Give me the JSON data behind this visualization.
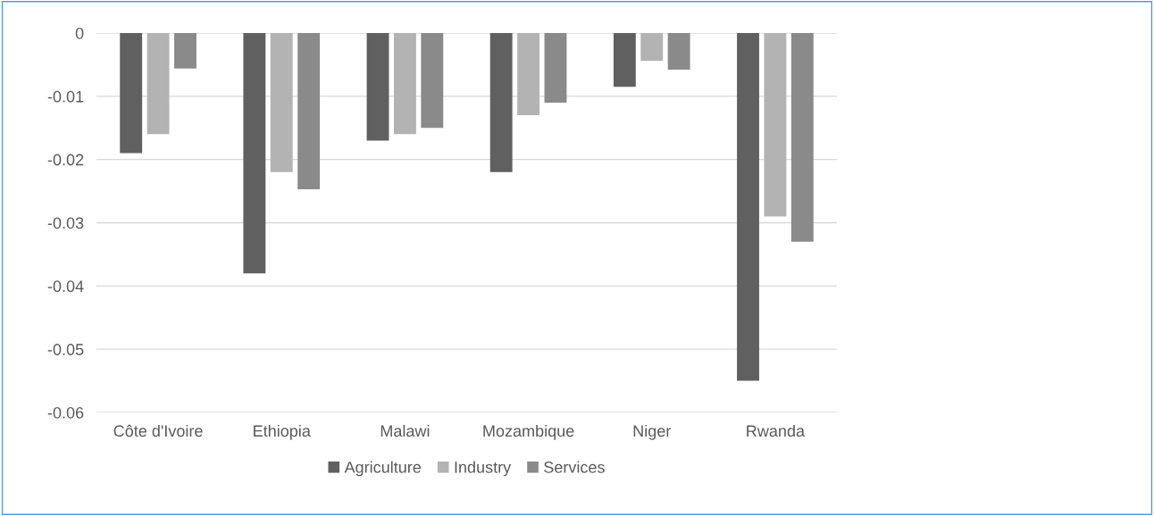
{
  "chart_data": {
    "type": "bar",
    "categories": [
      "Côte d'Ivoire",
      "Ethiopia",
      "Malawi",
      "Mozambique",
      "Niger",
      "Rwanda"
    ],
    "series": [
      {
        "name": "Agriculture",
        "color": "#606060",
        "values": [
          -0.019,
          -0.038,
          -0.017,
          -0.022,
          -0.0085,
          -0.055
        ]
      },
      {
        "name": "Industry",
        "color": "#b3b3b3",
        "values": [
          -0.016,
          -0.022,
          -0.016,
          -0.013,
          -0.0044,
          -0.029
        ]
      },
      {
        "name": "Services",
        "color": "#8a8a8a",
        "values": [
          -0.0056,
          -0.0247,
          -0.015,
          -0.011,
          -0.0058,
          -0.033
        ]
      }
    ],
    "ylim": [
      -0.06,
      0
    ],
    "yticks": [
      {
        "value": 0,
        "label": "0"
      },
      {
        "value": -0.01,
        "label": "-0.01"
      },
      {
        "value": -0.02,
        "label": "-0.02"
      },
      {
        "value": -0.03,
        "label": "-0.03"
      },
      {
        "value": -0.04,
        "label": "-0.04"
      },
      {
        "value": -0.05,
        "label": "-0.05"
      },
      {
        "value": -0.06,
        "label": "-0.06"
      }
    ],
    "grid": "y",
    "legend": "bottom"
  }
}
